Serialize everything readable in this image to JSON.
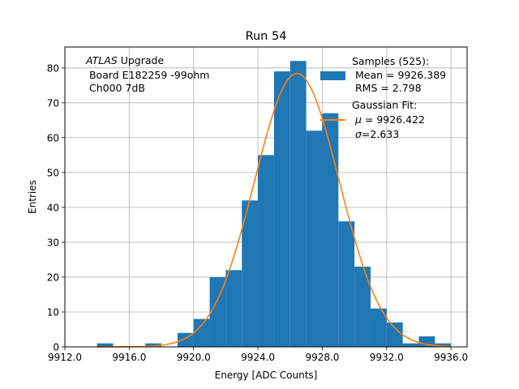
{
  "chart_data": {
    "type": "bar",
    "title": "Run 54",
    "xlabel": "Energy [ADC Counts]",
    "ylabel": "Entries",
    "xlim": [
      9912.0,
      9937.0
    ],
    "ylim": [
      0,
      86
    ],
    "grid": true,
    "x_ticks": [
      9912.0,
      9916.0,
      9920.0,
      9924.0,
      9928.0,
      9932.0,
      9936.0
    ],
    "x_tick_labels": [
      "9912.0",
      "9916.0",
      "9920.0",
      "9924.0",
      "9928.0",
      "9932.0",
      "9936.0"
    ],
    "y_ticks": [
      0,
      10,
      20,
      30,
      40,
      50,
      60,
      70,
      80
    ],
    "y_tick_labels": [
      "0",
      "10",
      "20",
      "30",
      "40",
      "50",
      "60",
      "70",
      "80"
    ],
    "annotation": {
      "atlas": "ATLAS",
      "upgrade": " Upgrade",
      "line2": " Board E182259 -99ohm",
      "line3": " Ch000 7dB"
    },
    "legend": {
      "placement": "top-right",
      "samples_title": "Samples (525):",
      "samples_mean": " Mean = 9926.389",
      "samples_rms": " RMS = 2.798",
      "fit_title": "Gaussian Fit:",
      "fit_mu_symbol": "μ",
      "fit_mu_value": " = 9926.422",
      "fit_sigma_symbol": "σ",
      "fit_sigma_value": "=2.633"
    },
    "histogram": {
      "name": "Samples (525)",
      "color": "#1f77b4",
      "bin_edges": [
        9914,
        9915,
        9916,
        9917,
        9918,
        9919,
        9920,
        9921,
        9922,
        9923,
        9924,
        9925,
        9926,
        9927,
        9928,
        9929,
        9930,
        9931,
        9932,
        9933,
        9934,
        9935,
        9936
      ],
      "counts": [
        1,
        0,
        0,
        1,
        0,
        4,
        8,
        20,
        22,
        42,
        55,
        79,
        82,
        62,
        67,
        36,
        23,
        11,
        7,
        1,
        3,
        1
      ]
    },
    "fit": {
      "name": "Gaussian Fit",
      "color": "#ff7f0e",
      "mu": 9926.422,
      "sigma": 2.633,
      "amplitude": 78.4,
      "x_range": [
        9914.0,
        9936.0
      ]
    }
  }
}
